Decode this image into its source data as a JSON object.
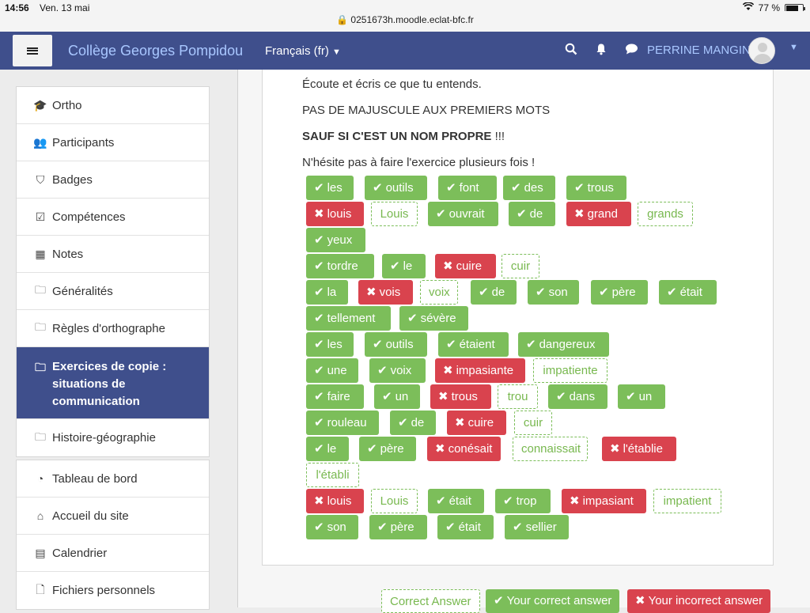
{
  "status_bar": {
    "time": "14:56",
    "date": "Ven. 13 mai",
    "battery": "77 %",
    "battery_level": 0.77
  },
  "url": "🔒 0251673h.moodle.eclat-bfc.fr",
  "navbar": {
    "brand": "Collège Georges Pompidou",
    "language": "Français ‎(fr)‎",
    "user_name": "PERRINE MANGIN"
  },
  "sidebar": {
    "course_items": [
      {
        "label": "Ortho",
        "icon": "graduation-cap-icon"
      },
      {
        "label": "Participants",
        "icon": "users-icon"
      },
      {
        "label": "Badges",
        "icon": "shield-icon"
      },
      {
        "label": "Compétences",
        "icon": "checkbox-icon"
      },
      {
        "label": "Notes",
        "icon": "table-icon"
      },
      {
        "label": "Généralités",
        "icon": "folder-icon"
      },
      {
        "label": "Règles d'orthographe",
        "icon": "folder-icon"
      },
      {
        "label_lines": [
          "Exercices de copie :",
          "situations de",
          "communication"
        ],
        "icon": "folder-icon",
        "active": true
      },
      {
        "label": "Histoire-géographie",
        "icon": "folder-icon"
      }
    ],
    "site_items": [
      {
        "label": "Tableau de bord",
        "icon": "dashboard-icon"
      },
      {
        "label": "Accueil du site",
        "icon": "home-icon"
      },
      {
        "label": "Calendrier",
        "icon": "calendar-icon"
      },
      {
        "label": "Fichiers personnels",
        "icon": "file-icon"
      }
    ]
  },
  "instructions": {
    "line1": "Écoute et écris ce que tu entends.",
    "line2": "PAS DE MAJUSCULE AUX PREMIERS MOTS",
    "line3_bold": "SAUF SI C'EST UN NOM PROPRE",
    "line3_rest": " !!!",
    "line4": "N'hésite pas à faire l'exercice plusieurs fois !"
  },
  "tokens": [
    {
      "text": "les",
      "type": "ok"
    },
    {
      "text": "outils",
      "type": "ok"
    },
    {
      "text": "font",
      "type": "ok"
    },
    {
      "text": "des",
      "type": "ok"
    },
    {
      "text": "trous",
      "type": "ok"
    },
    {
      "text": "louis",
      "type": "bad"
    },
    {
      "text": "Louis",
      "type": "ans"
    },
    {
      "text": "ouvrait",
      "type": "ok"
    },
    {
      "text": "de",
      "type": "ok"
    },
    {
      "text": "grand",
      "type": "bad"
    },
    {
      "text": "grands",
      "type": "ans"
    },
    {
      "text": "yeux",
      "type": "ok"
    },
    {
      "text": "tordre",
      "type": "ok"
    },
    {
      "text": "le",
      "type": "ok"
    },
    {
      "text": "cuire",
      "type": "bad"
    },
    {
      "text": "cuir",
      "type": "ans"
    },
    {
      "text": "la",
      "type": "ok"
    },
    {
      "text": "vois",
      "type": "bad"
    },
    {
      "text": "voix",
      "type": "ans"
    },
    {
      "text": "de",
      "type": "ok"
    },
    {
      "text": "son",
      "type": "ok"
    },
    {
      "text": "père",
      "type": "ok"
    },
    {
      "text": "était",
      "type": "ok"
    },
    {
      "text": "tellement",
      "type": "ok"
    },
    {
      "text": "sévère",
      "type": "ok"
    },
    {
      "text": "les",
      "type": "ok"
    },
    {
      "text": "outils",
      "type": "ok"
    },
    {
      "text": "étaient",
      "type": "ok"
    },
    {
      "text": "dangereux",
      "type": "ok"
    },
    {
      "text": "une",
      "type": "ok"
    },
    {
      "text": "voix",
      "type": "ok"
    },
    {
      "text": "impasiante",
      "type": "bad"
    },
    {
      "text": "impatiente",
      "type": "ans"
    },
    {
      "text": "faire",
      "type": "ok"
    },
    {
      "text": "un",
      "type": "ok"
    },
    {
      "text": "trous",
      "type": "bad"
    },
    {
      "text": "trou",
      "type": "ans"
    },
    {
      "text": "dans",
      "type": "ok"
    },
    {
      "text": "un",
      "type": "ok"
    },
    {
      "text": "rouleau",
      "type": "ok"
    },
    {
      "text": "de",
      "type": "ok"
    },
    {
      "text": "cuire",
      "type": "bad"
    },
    {
      "text": "cuir",
      "type": "ans"
    },
    {
      "text": "le",
      "type": "ok"
    },
    {
      "text": "père",
      "type": "ok"
    },
    {
      "text": "conésait",
      "type": "bad"
    },
    {
      "text": "connaissait",
      "type": "ans"
    },
    {
      "text": "l'établie",
      "type": "bad"
    },
    {
      "text": "l'établi",
      "type": "ans"
    },
    {
      "text": "louis",
      "type": "bad"
    },
    {
      "text": "Louis",
      "type": "ans"
    },
    {
      "text": "était",
      "type": "ok"
    },
    {
      "text": "trop",
      "type": "ok"
    },
    {
      "text": "impasiant",
      "type": "bad"
    },
    {
      "text": "impatient",
      "type": "ans"
    },
    {
      "text": "son",
      "type": "ok"
    },
    {
      "text": "père",
      "type": "ok"
    },
    {
      "text": "était",
      "type": "ok"
    },
    {
      "text": "sellier",
      "type": "ok"
    }
  ],
  "legend": {
    "correct_answer": "Correct Answer",
    "your_correct": "Your correct answer",
    "your_incorrect": "Your incorrect answer"
  },
  "colors": {
    "navbar": "#3f4f8c",
    "correct": "#7cbe5a",
    "incorrect": "#d9434e",
    "brand_text": "#a9c7ff"
  }
}
